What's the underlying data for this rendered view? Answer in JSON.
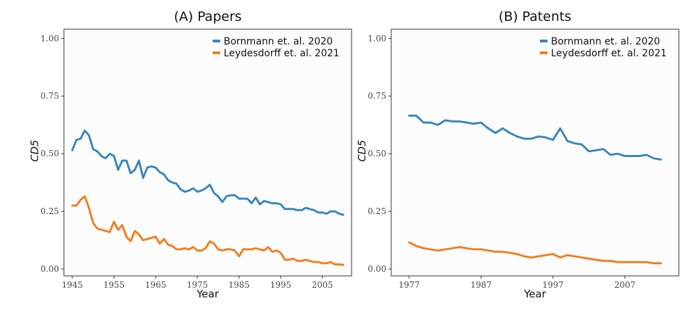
{
  "chart_data": [
    {
      "type": "line",
      "title": "(A) Papers",
      "xlabel": "Year",
      "ylabel": "CD5",
      "xlim": [
        1943,
        2012
      ],
      "ylim": [
        -0.03,
        1.04
      ],
      "xticks": [
        1945,
        1955,
        1965,
        1975,
        1985,
        1995,
        2005
      ],
      "yticks": [
        "0.00",
        "0.25",
        "0.50",
        "0.75",
        "1.00"
      ],
      "grid": false,
      "legend_position": "top-right",
      "x": [
        1945,
        1946,
        1947,
        1948,
        1949,
        1950,
        1951,
        1952,
        1953,
        1954,
        1955,
        1956,
        1957,
        1958,
        1959,
        1960,
        1961,
        1962,
        1963,
        1964,
        1965,
        1966,
        1967,
        1968,
        1969,
        1970,
        1971,
        1972,
        1973,
        1974,
        1975,
        1976,
        1977,
        1978,
        1979,
        1980,
        1981,
        1982,
        1983,
        1984,
        1985,
        1986,
        1987,
        1988,
        1989,
        1990,
        1991,
        1992,
        1993,
        1994,
        1995,
        1996,
        1997,
        1998,
        1999,
        2000,
        2001,
        2002,
        2003,
        2004,
        2005,
        2006,
        2007,
        2008,
        2009,
        2010
      ],
      "series": [
        {
          "name": "Bornmann et. al. 2020",
          "color": "#3a87bd",
          "values": [
            0.515,
            0.56,
            0.565,
            0.6,
            0.58,
            0.52,
            0.51,
            0.49,
            0.48,
            0.5,
            0.49,
            0.43,
            0.47,
            0.47,
            0.415,
            0.43,
            0.47,
            0.395,
            0.44,
            0.445,
            0.44,
            0.42,
            0.41,
            0.385,
            0.375,
            0.37,
            0.345,
            0.335,
            0.34,
            0.35,
            0.335,
            0.34,
            0.35,
            0.365,
            0.33,
            0.315,
            0.29,
            0.315,
            0.32,
            0.32,
            0.305,
            0.305,
            0.305,
            0.285,
            0.31,
            0.28,
            0.295,
            0.29,
            0.285,
            0.285,
            0.28,
            0.26,
            0.26,
            0.26,
            0.255,
            0.255,
            0.265,
            0.26,
            0.255,
            0.245,
            0.245,
            0.24,
            0.25,
            0.25,
            0.24,
            0.235
          ]
        },
        {
          "name": "Leydesdorff et. al. 2021",
          "color": "#f07f20",
          "values": [
            0.275,
            0.275,
            0.3,
            0.315,
            0.265,
            0.2,
            0.175,
            0.17,
            0.165,
            0.16,
            0.205,
            0.17,
            0.19,
            0.14,
            0.12,
            0.165,
            0.15,
            0.125,
            0.13,
            0.135,
            0.14,
            0.11,
            0.13,
            0.105,
            0.1,
            0.085,
            0.085,
            0.09,
            0.085,
            0.095,
            0.08,
            0.08,
            0.09,
            0.12,
            0.11,
            0.085,
            0.08,
            0.085,
            0.085,
            0.08,
            0.055,
            0.085,
            0.085,
            0.085,
            0.09,
            0.085,
            0.08,
            0.095,
            0.075,
            0.08,
            0.07,
            0.04,
            0.04,
            0.045,
            0.035,
            0.035,
            0.04,
            0.035,
            0.03,
            0.03,
            0.025,
            0.025,
            0.03,
            0.02,
            0.02,
            0.018
          ]
        }
      ]
    },
    {
      "type": "line",
      "title": "(B) Patents",
      "xlabel": "Year",
      "ylabel": "CD5",
      "xlim": [
        1974.5,
        2014.5
      ],
      "ylim": [
        -0.03,
        1.04
      ],
      "xticks": [
        1977,
        1987,
        1997,
        2007
      ],
      "yticks": [
        "0.00",
        "0.25",
        "0.50",
        "0.75",
        "1.00"
      ],
      "grid": false,
      "legend_position": "top-right",
      "x": [
        1977,
        1978,
        1979,
        1980,
        1981,
        1982,
        1983,
        1984,
        1985,
        1986,
        1987,
        1988,
        1989,
        1990,
        1991,
        1992,
        1993,
        1994,
        1995,
        1996,
        1997,
        1998,
        1999,
        2000,
        2001,
        2002,
        2003,
        2004,
        2005,
        2006,
        2007,
        2008,
        2009,
        2010,
        2011,
        2012
      ],
      "series": [
        {
          "name": "Bornmann et. al. 2020",
          "color": "#3a87bd",
          "values": [
            0.665,
            0.665,
            0.635,
            0.635,
            0.625,
            0.645,
            0.64,
            0.64,
            0.635,
            0.63,
            0.635,
            0.61,
            0.59,
            0.61,
            0.59,
            0.575,
            0.565,
            0.565,
            0.575,
            0.57,
            0.56,
            0.61,
            0.555,
            0.545,
            0.54,
            0.51,
            0.515,
            0.52,
            0.495,
            0.5,
            0.49,
            0.49,
            0.49,
            0.495,
            0.48,
            0.475
          ]
        },
        {
          "name": "Leydesdorff et. al. 2021",
          "color": "#f07f20",
          "values": [
            0.115,
            0.1,
            0.09,
            0.085,
            0.08,
            0.085,
            0.09,
            0.095,
            0.09,
            0.085,
            0.085,
            0.08,
            0.075,
            0.075,
            0.07,
            0.065,
            0.055,
            0.05,
            0.055,
            0.06,
            0.065,
            0.05,
            0.06,
            0.055,
            0.05,
            0.045,
            0.04,
            0.035,
            0.035,
            0.03,
            0.03,
            0.03,
            0.03,
            0.03,
            0.025,
            0.025
          ]
        }
      ]
    }
  ]
}
